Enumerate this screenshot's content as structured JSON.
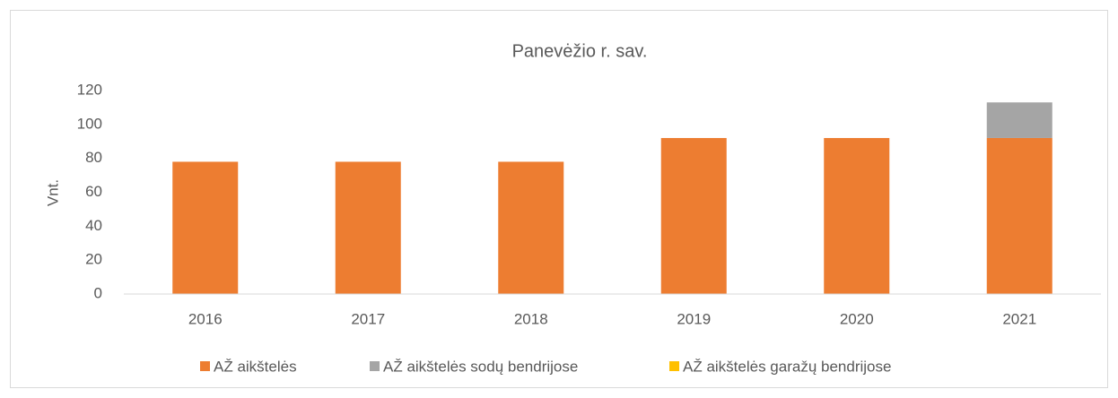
{
  "chart_data": {
    "type": "stacked_bar",
    "title": "Panevėžio r. sav.",
    "y_label": "Vnt.",
    "categories": [
      "2016",
      "2017",
      "2018",
      "2019",
      "2020",
      "2021"
    ],
    "series": [
      {
        "name": "AŽ aikštelės",
        "color": "#ed7d31",
        "values": [
          78,
          78,
          78,
          92,
          92,
          92
        ]
      },
      {
        "name": "AŽ aikštelės sodų bendrijose",
        "color": "#a5a5a5",
        "values": [
          0,
          0,
          0,
          0,
          0,
          21
        ]
      },
      {
        "name": "AŽ aikštelės garažų bendrijose",
        "color": "#ffc000",
        "values": [
          0,
          0,
          0,
          0,
          0,
          0
        ]
      }
    ],
    "ylim": [
      0,
      120
    ],
    "yticks": [
      0,
      20,
      40,
      60,
      80,
      100,
      120
    ],
    "grid": false,
    "legend": "bottom"
  }
}
